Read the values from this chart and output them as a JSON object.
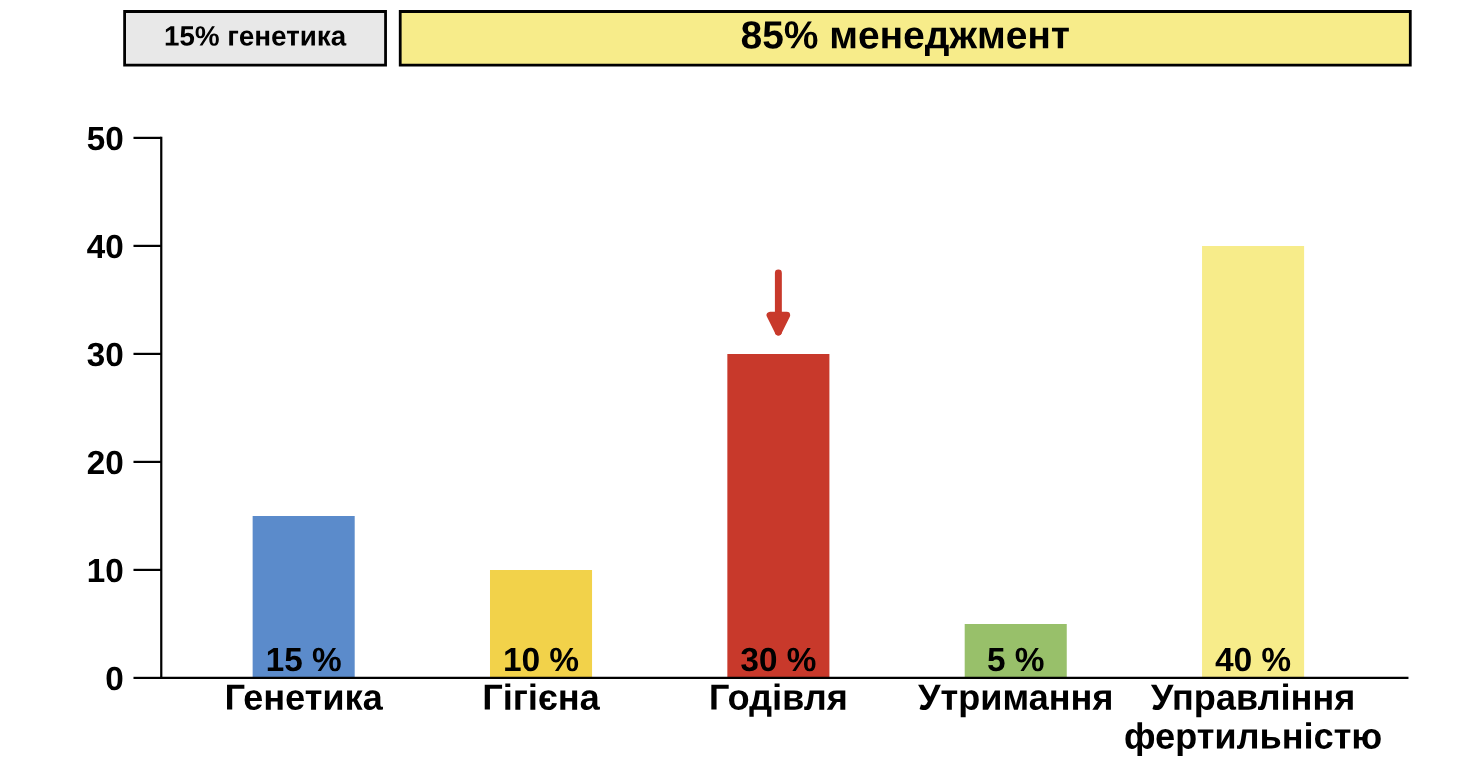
{
  "chart_data": {
    "type": "bar",
    "categories": [
      "Генетика",
      "Гігієна",
      "Годівля",
      "Утримання",
      "Управління\nфертильністю"
    ],
    "values": [
      15,
      10,
      30,
      5,
      40
    ],
    "colors": [
      "#5b8bcb",
      "#f2d24a",
      "#c8392b",
      "#98c06a",
      "#f7ec8a"
    ],
    "value_labels": [
      "15 %",
      "10 %",
      "30 %",
      "5 %",
      "40 %"
    ],
    "ylim": [
      0,
      50
    ],
    "yticks": [
      0,
      10,
      20,
      30,
      40,
      50
    ],
    "grid": false,
    "annotations": [
      "15% генетика",
      "85% менеджмент"
    ]
  }
}
